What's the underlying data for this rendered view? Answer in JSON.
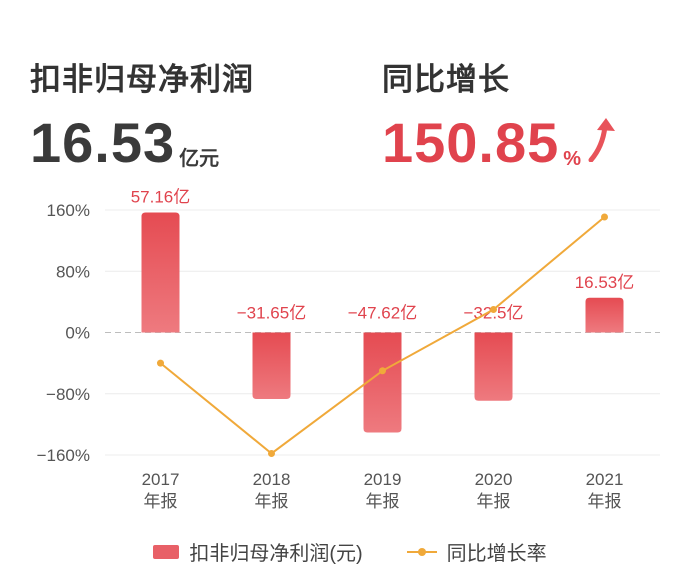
{
  "kpi": {
    "left": {
      "label": "扣非归母净利润",
      "value": "16.53",
      "unit": "亿元"
    },
    "right": {
      "label": "同比增长",
      "value": "150.85",
      "unit": "%",
      "trend": "up-arrow-icon"
    }
  },
  "colors": {
    "bar": "#e8535a",
    "line": "#f0a93a",
    "bar_label": "#e0434d",
    "positive_accent": "#e0434d"
  },
  "chart_data": {
    "type": "bar",
    "categories": [
      "2017\n年报",
      "2018\n年报",
      "2019\n年报",
      "2020\n年报",
      "2021\n年报"
    ],
    "series": [
      {
        "name": "扣非归母净利润(元)",
        "type": "bar",
        "values": [
          57.16,
          -31.65,
          -47.62,
          -32.5,
          16.53
        ],
        "labels": [
          "57.16亿",
          "−31.65亿",
          "−47.62亿",
          "−32.5亿",
          "16.53亿"
        ]
      },
      {
        "name": "同比增长率",
        "type": "line",
        "values": [
          -40,
          -158,
          -50,
          30,
          150.85
        ]
      }
    ],
    "y_ticks": [
      "160%",
      "80%",
      "0%",
      "−80%",
      "−160%"
    ],
    "ylim": [
      -160,
      160
    ],
    "grid": true,
    "legend": "bottom-center"
  }
}
